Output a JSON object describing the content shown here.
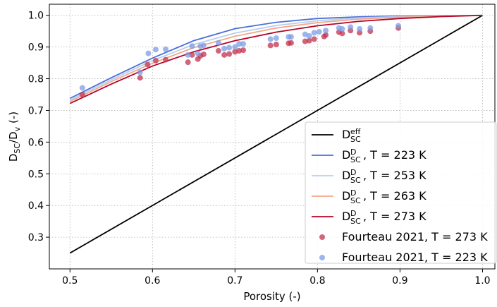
{
  "chart_data": {
    "type": "line",
    "xlabel": "Porosity (-)",
    "ylabel": {
      "main": "D",
      "sub1": "SC",
      "sep": "/D",
      "sub2": "v",
      "unit": " (-)"
    },
    "xlim": [
      0.475,
      1.015
    ],
    "ylim": [
      0.2,
      1.035
    ],
    "xticks": [
      0.5,
      0.6,
      0.7,
      0.8,
      0.9,
      1.0
    ],
    "yticks": [
      0.3,
      0.4,
      0.5,
      0.6,
      0.7,
      0.8,
      0.9,
      1.0
    ],
    "xtick_labels": [
      "0.5",
      "0.6",
      "0.7",
      "0.8",
      "0.9",
      "1.0"
    ],
    "ytick_labels": [
      "0.3",
      "0.4",
      "0.5",
      "0.6",
      "0.7",
      "0.8",
      "0.9",
      "1.0"
    ],
    "grid": true,
    "legend_position": "lower-right",
    "series": [
      {
        "kind": "line",
        "color": "#000000",
        "label": {
          "main": "D",
          "sub": "SC",
          "sup": "eff",
          "rest": ""
        },
        "points": [
          [
            0.5,
            0.25
          ],
          [
            1.0,
            1.0
          ]
        ]
      },
      {
        "kind": "line",
        "color": "#4a6fd9",
        "label": {
          "main": "D",
          "sub": "SC",
          "sup": "D",
          "rest": ", T = 223 K"
        },
        "points": [
          [
            0.5,
            0.738
          ],
          [
            0.55,
            0.803
          ],
          [
            0.6,
            0.865
          ],
          [
            0.65,
            0.92
          ],
          [
            0.7,
            0.958
          ],
          [
            0.75,
            0.978
          ],
          [
            0.8,
            0.99
          ],
          [
            0.85,
            0.995
          ],
          [
            0.9,
            0.998
          ],
          [
            0.95,
            0.999
          ],
          [
            1.0,
            1.0
          ]
        ]
      },
      {
        "kind": "line",
        "color": "#b7cfee",
        "label": {
          "main": "D",
          "sub": "SC",
          "sup": "D",
          "rest": ", T = 253 K"
        },
        "points": [
          [
            0.5,
            0.733
          ],
          [
            0.55,
            0.797
          ],
          [
            0.6,
            0.857
          ],
          [
            0.65,
            0.908
          ],
          [
            0.7,
            0.944
          ],
          [
            0.75,
            0.968
          ],
          [
            0.8,
            0.983
          ],
          [
            0.85,
            0.992
          ],
          [
            0.9,
            0.996
          ],
          [
            0.95,
            0.998
          ],
          [
            1.0,
            1.0
          ]
        ]
      },
      {
        "kind": "line",
        "color": "#f2a88a",
        "label": {
          "main": "D",
          "sub": "SC",
          "sup": "D",
          "rest": ", T = 263 K"
        },
        "points": [
          [
            0.5,
            0.728
          ],
          [
            0.55,
            0.791
          ],
          [
            0.6,
            0.849
          ],
          [
            0.65,
            0.898
          ],
          [
            0.7,
            0.934
          ],
          [
            0.75,
            0.96
          ],
          [
            0.8,
            0.977
          ],
          [
            0.85,
            0.988
          ],
          [
            0.9,
            0.994
          ],
          [
            0.95,
            0.997
          ],
          [
            1.0,
            1.0
          ]
        ]
      },
      {
        "kind": "line",
        "color": "#b40426",
        "label": {
          "main": "D",
          "sub": "SC",
          "sup": "D",
          "rest": ", T = 273 K"
        },
        "points": [
          [
            0.5,
            0.722
          ],
          [
            0.55,
            0.783
          ],
          [
            0.6,
            0.84
          ],
          [
            0.65,
            0.885
          ],
          [
            0.7,
            0.92
          ],
          [
            0.75,
            0.947
          ],
          [
            0.8,
            0.967
          ],
          [
            0.85,
            0.981
          ],
          [
            0.9,
            0.99
          ],
          [
            0.95,
            0.996
          ],
          [
            1.0,
            1.0
          ]
        ]
      },
      {
        "kind": "scatter",
        "color": "#c0334e",
        "label": {
          "main": "Fourteau 2021, T = 273 K",
          "sub": "",
          "sup": "",
          "rest": ""
        },
        "points": [
          [
            0.515,
            0.75
          ],
          [
            0.585,
            0.803
          ],
          [
            0.594,
            0.845
          ],
          [
            0.604,
            0.857
          ],
          [
            0.616,
            0.86
          ],
          [
            0.643,
            0.852
          ],
          [
            0.648,
            0.875
          ],
          [
            0.655,
            0.862
          ],
          [
            0.658,
            0.872
          ],
          [
            0.662,
            0.877
          ],
          [
            0.68,
            0.888
          ],
          [
            0.687,
            0.875
          ],
          [
            0.693,
            0.878
          ],
          [
            0.7,
            0.885
          ],
          [
            0.705,
            0.888
          ],
          [
            0.71,
            0.89
          ],
          [
            0.743,
            0.905
          ],
          [
            0.75,
            0.908
          ],
          [
            0.765,
            0.912
          ],
          [
            0.768,
            0.913
          ],
          [
            0.785,
            0.918
          ],
          [
            0.79,
            0.92
          ],
          [
            0.796,
            0.925
          ],
          [
            0.808,
            0.933
          ],
          [
            0.81,
            0.938
          ],
          [
            0.826,
            0.947
          ],
          [
            0.83,
            0.943
          ],
          [
            0.84,
            0.952
          ],
          [
            0.851,
            0.945
          ],
          [
            0.864,
            0.95
          ],
          [
            0.898,
            0.96
          ]
        ]
      },
      {
        "kind": "scatter",
        "color": "#7b9ce6",
        "label": {
          "main": "Fourteau 2021, T = 223 K",
          "sub": "",
          "sup": "",
          "rest": ""
        },
        "points": [
          [
            0.515,
            0.771
          ],
          [
            0.585,
            0.82
          ],
          [
            0.595,
            0.88
          ],
          [
            0.604,
            0.892
          ],
          [
            0.616,
            0.893
          ],
          [
            0.643,
            0.875
          ],
          [
            0.648,
            0.903
          ],
          [
            0.655,
            0.88
          ],
          [
            0.658,
            0.903
          ],
          [
            0.662,
            0.905
          ],
          [
            0.68,
            0.913
          ],
          [
            0.687,
            0.895
          ],
          [
            0.693,
            0.898
          ],
          [
            0.7,
            0.9
          ],
          [
            0.705,
            0.91
          ],
          [
            0.71,
            0.91
          ],
          [
            0.743,
            0.925
          ],
          [
            0.75,
            0.928
          ],
          [
            0.765,
            0.932
          ],
          [
            0.768,
            0.932
          ],
          [
            0.785,
            0.94
          ],
          [
            0.79,
            0.935
          ],
          [
            0.796,
            0.945
          ],
          [
            0.802,
            0.948
          ],
          [
            0.81,
            0.952
          ],
          [
            0.826,
            0.96
          ],
          [
            0.83,
            0.957
          ],
          [
            0.84,
            0.963
          ],
          [
            0.851,
            0.957
          ],
          [
            0.864,
            0.96
          ],
          [
            0.898,
            0.967
          ]
        ]
      }
    ]
  }
}
